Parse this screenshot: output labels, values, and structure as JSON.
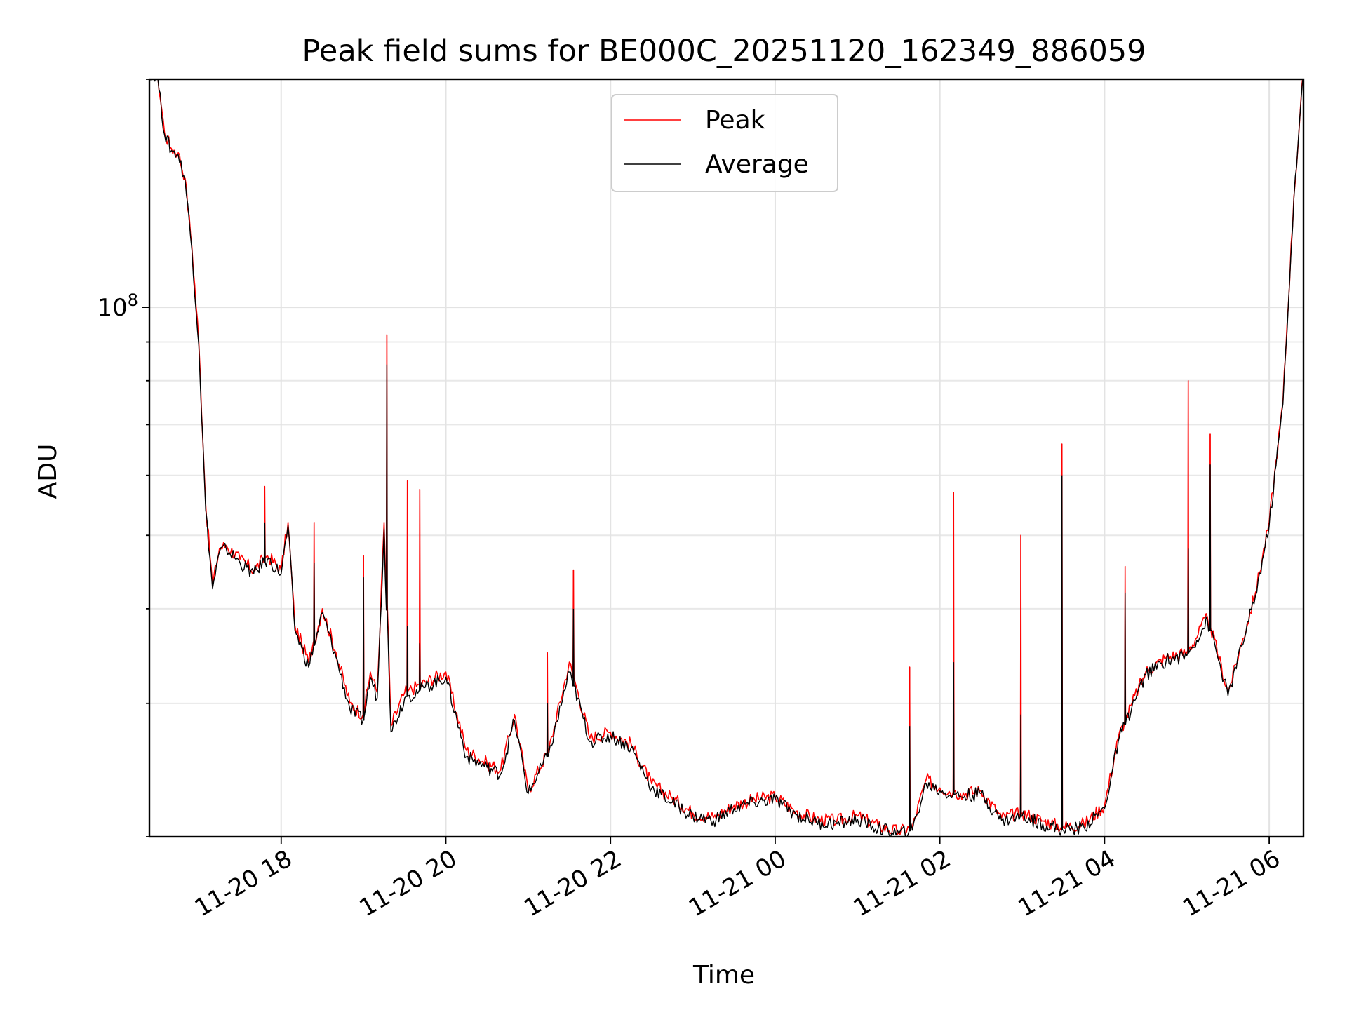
{
  "chart_data": {
    "type": "line",
    "title": "Peak field sums for BE000C_20251120_162349_886059",
    "xlabel": "Time",
    "ylabel": "ADU",
    "y_scale": "log",
    "grid": true,
    "legend_position": "top-center",
    "xlim": [
      "2025-11-20 16:24",
      "2025-11-21 06:25"
    ],
    "ylim": [
      20000000,
      200000000
    ],
    "x_ticks": [
      {
        "value": "2025-11-20 18:00",
        "label": "11-20 18"
      },
      {
        "value": "2025-11-20 20:00",
        "label": "11-20 20"
      },
      {
        "value": "2025-11-20 22:00",
        "label": "11-20 22"
      },
      {
        "value": "2025-11-21 00:00",
        "label": "11-21 00"
      },
      {
        "value": "2025-11-21 02:00",
        "label": "11-21 02"
      },
      {
        "value": "2025-11-21 04:00",
        "label": "11-21 04"
      },
      {
        "value": "2025-11-21 06:00",
        "label": "11-21 06"
      }
    ],
    "y_ticks": [
      {
        "value": 100000000,
        "base": "10",
        "exponent": "8"
      }
    ],
    "x": [
      "2025-11-20 16:24",
      "2025-11-20 16:30",
      "2025-11-20 16:35",
      "2025-11-20 16:40",
      "2025-11-20 16:45",
      "2025-11-20 16:50",
      "2025-11-20 16:55",
      "2025-11-20 17:00",
      "2025-11-20 17:05",
      "2025-11-20 17:10",
      "2025-11-20 17:15",
      "2025-11-20 17:20",
      "2025-11-20 17:30",
      "2025-11-20 17:40",
      "2025-11-20 17:50",
      "2025-11-20 18:00",
      "2025-11-20 18:05",
      "2025-11-20 18:10",
      "2025-11-20 18:15",
      "2025-11-20 18:20",
      "2025-11-20 18:30",
      "2025-11-20 18:40",
      "2025-11-20 18:50",
      "2025-11-20 19:00",
      "2025-11-20 19:05",
      "2025-11-20 19:10",
      "2025-11-20 19:15",
      "2025-11-20 19:20",
      "2025-11-20 19:30",
      "2025-11-20 19:45",
      "2025-11-20 20:00",
      "2025-11-20 20:15",
      "2025-11-20 20:30",
      "2025-11-20 20:40",
      "2025-11-20 20:50",
      "2025-11-20 21:00",
      "2025-11-20 21:15",
      "2025-11-20 21:30",
      "2025-11-20 21:45",
      "2025-11-20 22:00",
      "2025-11-20 22:15",
      "2025-11-20 22:30",
      "2025-11-20 22:45",
      "2025-11-20 23:00",
      "2025-11-20 23:15",
      "2025-11-20 23:30",
      "2025-11-20 23:45",
      "2025-11-21 00:00",
      "2025-11-21 00:15",
      "2025-11-21 00:30",
      "2025-11-21 00:45",
      "2025-11-21 01:00",
      "2025-11-21 01:15",
      "2025-11-21 01:30",
      "2025-11-21 01:40",
      "2025-11-21 01:50",
      "2025-11-21 02:00",
      "2025-11-21 02:15",
      "2025-11-21 02:30",
      "2025-11-21 02:45",
      "2025-11-21 03:00",
      "2025-11-21 03:15",
      "2025-11-21 03:30",
      "2025-11-21 03:45",
      "2025-11-21 04:00",
      "2025-11-21 04:10",
      "2025-11-21 04:20",
      "2025-11-21 04:30",
      "2025-11-21 04:45",
      "2025-11-21 05:00",
      "2025-11-21 05:15",
      "2025-11-21 05:30",
      "2025-11-21 05:40",
      "2025-11-21 05:50",
      "2025-11-21 06:00",
      "2025-11-21 06:10",
      "2025-11-21 06:18",
      "2025-11-21 06:25"
    ],
    "series": [
      {
        "name": "Peak",
        "color": "#ff0000",
        "values": [
          205000000,
          203000000,
          170000000,
          162000000,
          160000000,
          148000000,
          120000000,
          90000000,
          55000000,
          43000000,
          48000000,
          48500000,
          46500000,
          45000000,
          47000000,
          45000000,
          52000000,
          38000000,
          36000000,
          34000000,
          40000000,
          35000000,
          30000000,
          29000000,
          33000000,
          31000000,
          52000000,
          28000000,
          31000000,
          32000000,
          33000000,
          26000000,
          25000000,
          24500000,
          29000000,
          23000000,
          26000000,
          34000000,
          27000000,
          27500000,
          26500000,
          23500000,
          22500000,
          21500000,
          21200000,
          22000000,
          22400000,
          22600000,
          21600000,
          21100000,
          21000000,
          21300000,
          20700000,
          20300000,
          20600000,
          23800000,
          23200000,
          22800000,
          23000000,
          21200000,
          21500000,
          21000000,
          20600000,
          20800000,
          22000000,
          27000000,
          30000000,
          33000000,
          34500000,
          35000000,
          39000000,
          31000000,
          36000000,
          42000000,
          52000000,
          75000000,
          140000000,
          205000000
        ]
      },
      {
        "name": "Average",
        "color": "#000000",
        "values": [
          204000000,
          202000000,
          169000000,
          161000000,
          159000000,
          147000000,
          119000000,
          89000000,
          54000000,
          42500000,
          47500000,
          48000000,
          46000000,
          44500000,
          46500000,
          44500000,
          51500000,
          37500000,
          35500000,
          33500000,
          39500000,
          34500000,
          29500000,
          28500000,
          32500000,
          30500000,
          51000000,
          27500000,
          30500000,
          31500000,
          32500000,
          25500000,
          24700000,
          24200000,
          28500000,
          22800000,
          25700000,
          33000000,
          26700000,
          27200000,
          26200000,
          23200000,
          22200000,
          21300000,
          21000000,
          21800000,
          22200000,
          22400000,
          21400000,
          20900000,
          20800000,
          21100000,
          20500000,
          20200000,
          20400000,
          23500000,
          23000000,
          22600000,
          22800000,
          21000000,
          21300000,
          20800000,
          20400000,
          20600000,
          21800000,
          26700000,
          29700000,
          32700000,
          34200000,
          34700000,
          38600000,
          30700000,
          35700000,
          41600000,
          51500000,
          74500000,
          139000000,
          204000000
        ]
      }
    ],
    "spikes": [
      {
        "x": "2025-11-20 19:17",
        "peak": 92000000,
        "average": 84000000
      },
      {
        "x": "2025-11-20 19:32",
        "peak": 59000000,
        "average": 38000000
      },
      {
        "x": "2025-11-20 19:41",
        "peak": 57500000,
        "average": 36000000
      },
      {
        "x": "2025-11-20 17:48",
        "peak": 58000000,
        "average": 52000000
      },
      {
        "x": "2025-11-20 18:24",
        "peak": 52000000,
        "average": 46000000
      },
      {
        "x": "2025-11-20 19:00",
        "peak": 47000000,
        "average": 44000000
      },
      {
        "x": "2025-11-20 21:33",
        "peak": 45000000,
        "average": 40000000
      },
      {
        "x": "2025-11-20 21:14",
        "peak": 35000000,
        "average": 30000000
      },
      {
        "x": "2025-11-21 02:10",
        "peak": 57000000,
        "average": 34000000
      },
      {
        "x": "2025-11-21 02:59",
        "peak": 50000000,
        "average": 29000000
      },
      {
        "x": "2025-11-21 03:29",
        "peak": 66000000,
        "average": 60000000
      },
      {
        "x": "2025-11-21 01:38",
        "peak": 33500000,
        "average": 28000000
      },
      {
        "x": "2025-11-21 04:15",
        "peak": 45500000,
        "average": 42000000
      },
      {
        "x": "2025-11-21 05:01",
        "peak": 80000000,
        "average": 48000000
      },
      {
        "x": "2025-11-21 05:17",
        "peak": 68000000,
        "average": 62000000
      }
    ]
  }
}
